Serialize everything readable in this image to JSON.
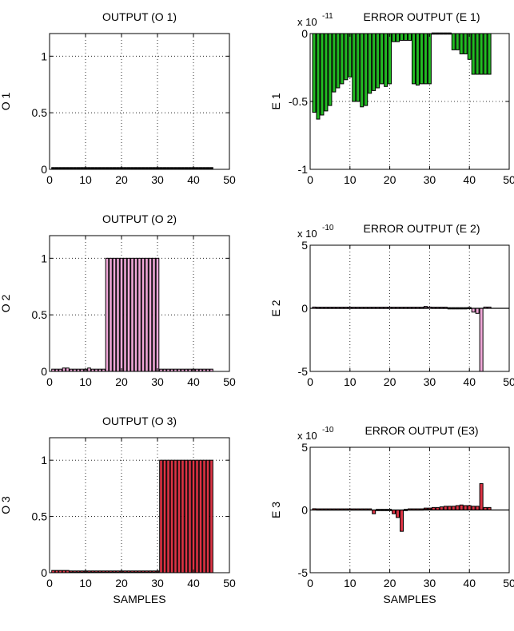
{
  "chart_data": [
    {
      "type": "bar",
      "title": "OUTPUT (O 1)",
      "xlabel": "",
      "ylabel": "O 1",
      "xlim": [
        0,
        50
      ],
      "ylim": [
        0,
        1.2
      ],
      "xticks": [
        0,
        10,
        20,
        30,
        40,
        50
      ],
      "yticks": [
        0,
        0.5,
        1
      ],
      "ytick_labels": [
        "0",
        "0.5",
        "1"
      ],
      "exponent_label": "",
      "grid": true,
      "bar_color": "#000000",
      "x": [
        1,
        2,
        3,
        4,
        5,
        6,
        7,
        8,
        9,
        10,
        11,
        12,
        13,
        14,
        15,
        16,
        17,
        18,
        19,
        20,
        21,
        22,
        23,
        24,
        25,
        26,
        27,
        28,
        29,
        30,
        31,
        32,
        33,
        34,
        35,
        36,
        37,
        38,
        39,
        40,
        41,
        42,
        43,
        44,
        45
      ],
      "values": [
        0.01,
        0.01,
        0.01,
        0.01,
        0.01,
        0.01,
        0.01,
        0.01,
        0.01,
        0.01,
        0.01,
        0.01,
        0.01,
        0.01,
        0.01,
        0.01,
        0.01,
        0.01,
        0.01,
        0.01,
        0.01,
        0.01,
        0.01,
        0.01,
        0.01,
        0.01,
        0.01,
        0.01,
        0.01,
        0.01,
        0.01,
        0.01,
        0.01,
        0.01,
        0.01,
        0.01,
        0.01,
        0.01,
        0.01,
        0.01,
        0.01,
        0.01,
        0.01,
        0.01,
        0.01
      ]
    },
    {
      "type": "bar",
      "title": "ERROR OUTPUT (E 1)",
      "xlabel": "",
      "ylabel": "E 1",
      "xlim": [
        0,
        50
      ],
      "ylim": [
        -1,
        0
      ],
      "xticks": [
        0,
        10,
        20,
        30,
        40,
        50
      ],
      "yticks": [
        -1,
        -0.5,
        0
      ],
      "ytick_labels": [
        "-1",
        "-0.5",
        "0"
      ],
      "exponent_label": "x 10",
      "exponent_power": "-11",
      "grid": true,
      "bar_color": "#22bb22",
      "x": [
        1,
        2,
        3,
        4,
        5,
        6,
        7,
        8,
        9,
        10,
        11,
        12,
        13,
        14,
        15,
        16,
        17,
        18,
        19,
        20,
        21,
        22,
        23,
        24,
        25,
        26,
        27,
        28,
        29,
        30,
        31,
        32,
        33,
        34,
        35,
        36,
        37,
        38,
        39,
        40,
        41,
        42,
        43,
        44,
        45
      ],
      "values": [
        -0.58,
        -0.63,
        -0.6,
        -0.57,
        -0.53,
        -0.43,
        -0.4,
        -0.37,
        -0.34,
        -0.32,
        -0.5,
        -0.5,
        -0.54,
        -0.53,
        -0.44,
        -0.42,
        -0.4,
        -0.37,
        -0.39,
        -0.37,
        -0.06,
        -0.06,
        -0.05,
        -0.05,
        -0.05,
        -0.37,
        -0.38,
        -0.37,
        -0.37,
        -0.37,
        0,
        0,
        0,
        0,
        0,
        -0.12,
        -0.12,
        -0.15,
        -0.15,
        -0.19,
        -0.3,
        -0.3,
        -0.3,
        -0.3,
        -0.3
      ]
    },
    {
      "type": "bar",
      "title": "OUTPUT (O 2)",
      "xlabel": "",
      "ylabel": "O 2",
      "xlim": [
        0,
        50
      ],
      "ylim": [
        0,
        1.2
      ],
      "xticks": [
        0,
        10,
        20,
        30,
        40,
        50
      ],
      "yticks": [
        0,
        0.5,
        1
      ],
      "ytick_labels": [
        "0",
        "0.5",
        "1"
      ],
      "exponent_label": "",
      "grid": true,
      "bar_color": "#f0a8d8",
      "x": [
        1,
        2,
        3,
        4,
        5,
        6,
        7,
        8,
        9,
        10,
        11,
        12,
        13,
        14,
        15,
        16,
        17,
        18,
        19,
        20,
        21,
        22,
        23,
        24,
        25,
        26,
        27,
        28,
        29,
        30,
        31,
        32,
        33,
        34,
        35,
        36,
        37,
        38,
        39,
        40,
        41,
        42,
        43,
        44,
        45
      ],
      "values": [
        0.02,
        0.02,
        0.02,
        0.03,
        0.03,
        0.02,
        0.02,
        0.02,
        0.02,
        0.02,
        0.03,
        0.02,
        0.02,
        0.02,
        0.02,
        1,
        1,
        1,
        1,
        1,
        1,
        1,
        1,
        1,
        1,
        1,
        1,
        1,
        1,
        1,
        0.02,
        0.02,
        0.02,
        0.02,
        0.02,
        0.02,
        0.02,
        0.02,
        0.02,
        0.02,
        0.02,
        0.02,
        0.02,
        0.02,
        0.02
      ]
    },
    {
      "type": "bar",
      "title": "ERROR OUTPUT (E 2)",
      "xlabel": "",
      "ylabel": "E 2",
      "xlim": [
        0,
        50
      ],
      "ylim": [
        -5,
        5
      ],
      "xticks": [
        0,
        10,
        20,
        30,
        40,
        50
      ],
      "yticks": [
        -5,
        0,
        5
      ],
      "ytick_labels": [
        "-5",
        "0",
        "5"
      ],
      "exponent_label": "x 10",
      "exponent_power": "-10",
      "grid": true,
      "bar_color": "#f0a8d8",
      "x": [
        1,
        2,
        3,
        4,
        5,
        6,
        7,
        8,
        9,
        10,
        11,
        12,
        13,
        14,
        15,
        16,
        17,
        18,
        19,
        20,
        21,
        22,
        23,
        24,
        25,
        26,
        27,
        28,
        29,
        30,
        31,
        32,
        33,
        34,
        35,
        36,
        37,
        38,
        39,
        40,
        41,
        42,
        43,
        44,
        45
      ],
      "values": [
        0.05,
        0.04,
        0.04,
        0.04,
        0.04,
        0.04,
        0.04,
        0.04,
        0.04,
        0.04,
        0.04,
        0.04,
        0.04,
        0.04,
        0.04,
        0.04,
        0.04,
        0.04,
        0.04,
        0.04,
        0.04,
        0.04,
        0.04,
        0.04,
        0.04,
        0.04,
        0.04,
        0.04,
        0.1,
        0.05,
        0.04,
        0.04,
        0.04,
        0.04,
        -0.1,
        -0.1,
        -0.1,
        -0.1,
        -0.1,
        0.02,
        -0.3,
        -0.4,
        -5,
        0.05,
        0.05
      ]
    },
    {
      "type": "bar",
      "title": "OUTPUT (O 3)",
      "xlabel": "SAMPLES",
      "ylabel": "O 3",
      "xlim": [
        0,
        50
      ],
      "ylim": [
        0,
        1.2
      ],
      "xticks": [
        0,
        10,
        20,
        30,
        40,
        50
      ],
      "yticks": [
        0,
        0.5,
        1
      ],
      "ytick_labels": [
        "0",
        "0.5",
        "1"
      ],
      "exponent_label": "",
      "grid": true,
      "bar_color": "#dd3344",
      "x": [
        1,
        2,
        3,
        4,
        5,
        6,
        7,
        8,
        9,
        10,
        11,
        12,
        13,
        14,
        15,
        16,
        17,
        18,
        19,
        20,
        21,
        22,
        23,
        24,
        25,
        26,
        27,
        28,
        29,
        30,
        31,
        32,
        33,
        34,
        35,
        36,
        37,
        38,
        39,
        40,
        41,
        42,
        43,
        44,
        45
      ],
      "values": [
        0.02,
        0.02,
        0.02,
        0.02,
        0.02,
        0.01,
        0.01,
        0.01,
        0.01,
        0.01,
        0.01,
        0.01,
        0.01,
        0.01,
        0.01,
        0.01,
        0.01,
        0.01,
        0.01,
        0.01,
        0.01,
        0.01,
        0.01,
        0.01,
        0.01,
        0.01,
        0.01,
        0.01,
        0.01,
        0.01,
        1,
        1,
        1,
        1,
        1,
        1,
        1,
        1,
        1,
        1,
        1,
        1,
        1,
        1,
        1
      ]
    },
    {
      "type": "bar",
      "title": "ERROR OUTPUT (E3)",
      "xlabel": "SAMPLES",
      "ylabel": "E 3",
      "xlim": [
        0,
        50
      ],
      "ylim": [
        -5,
        5
      ],
      "xticks": [
        0,
        10,
        20,
        30,
        40,
        50
      ],
      "yticks": [
        -5,
        0,
        5
      ],
      "ytick_labels": [
        "-5",
        "0",
        "5"
      ],
      "exponent_label": "x 10",
      "exponent_power": "-10",
      "grid": true,
      "bar_color": "#dd3344",
      "x": [
        1,
        2,
        3,
        4,
        5,
        6,
        7,
        8,
        9,
        10,
        11,
        12,
        13,
        14,
        15,
        16,
        17,
        18,
        19,
        20,
        21,
        22,
        23,
        24,
        25,
        26,
        27,
        28,
        29,
        30,
        31,
        32,
        33,
        34,
        35,
        36,
        37,
        38,
        39,
        40,
        41,
        42,
        43,
        44,
        45
      ],
      "values": [
        0.05,
        0.04,
        0.04,
        0.04,
        0.04,
        0.04,
        0.04,
        0.04,
        0.04,
        0.04,
        0.04,
        0.04,
        0.04,
        0.04,
        0.04,
        -0.3,
        -0.1,
        -0.1,
        -0.1,
        -0.1,
        -0.3,
        -0.6,
        -1.7,
        -0.1,
        0.04,
        0.04,
        0.04,
        0.04,
        0.1,
        0.1,
        0.2,
        0.2,
        0.25,
        0.3,
        0.3,
        0.3,
        0.35,
        0.4,
        0.35,
        0.35,
        0.3,
        0.3,
        2.1,
        0.2,
        0.2
      ]
    }
  ]
}
